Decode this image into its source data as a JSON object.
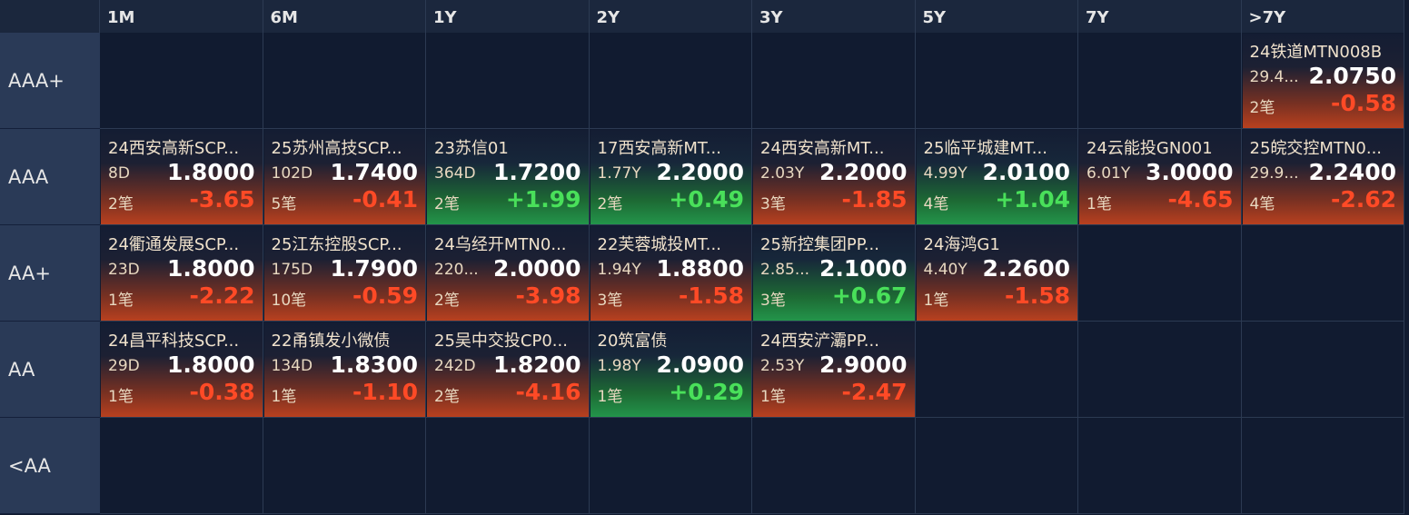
{
  "columns": [
    "1M",
    "6M",
    "1Y",
    "2Y",
    "3Y",
    "5Y",
    "7Y",
    ">7Y"
  ],
  "rows": [
    {
      "label": "AAA+",
      "cells": [
        null,
        null,
        null,
        null,
        null,
        null,
        null,
        {
          "name": "24铁道MTN008B",
          "term": "29.4...",
          "yield": "2.0750",
          "count": "2笔",
          "change": "-0.58"
        }
      ]
    },
    {
      "label": "AAA",
      "cells": [
        {
          "name": "24西安高新SCP...",
          "term": "8D",
          "yield": "1.8000",
          "count": "2笔",
          "change": "-3.65"
        },
        {
          "name": "25苏州高技SCP...",
          "term": "102D",
          "yield": "1.7400",
          "count": "5笔",
          "change": "-0.41"
        },
        {
          "name": "23苏信01",
          "term": "364D",
          "yield": "1.7200",
          "count": "2笔",
          "change": "+1.99"
        },
        {
          "name": "17西安高新MT...",
          "term": "1.77Y",
          "yield": "2.2000",
          "count": "2笔",
          "change": "+0.49"
        },
        {
          "name": "24西安高新MT...",
          "term": "2.03Y",
          "yield": "2.2000",
          "count": "3笔",
          "change": "-1.85"
        },
        {
          "name": "25临平城建MT...",
          "term": "4.99Y",
          "yield": "2.0100",
          "count": "4笔",
          "change": "+1.04"
        },
        {
          "name": "24云能投GN001",
          "term": "6.01Y",
          "yield": "3.0000",
          "count": "1笔",
          "change": "-4.65"
        },
        {
          "name": "25皖交控MTN0...",
          "term": "29.9...",
          "yield": "2.2400",
          "count": "4笔",
          "change": "-2.62"
        }
      ]
    },
    {
      "label": "AA+",
      "cells": [
        {
          "name": "24衢通发展SCP...",
          "term": "23D",
          "yield": "1.8000",
          "count": "1笔",
          "change": "-2.22"
        },
        {
          "name": "25江东控股SCP...",
          "term": "175D",
          "yield": "1.7900",
          "count": "10笔",
          "change": "-0.59"
        },
        {
          "name": "24乌经开MTN0...",
          "term": "220...",
          "yield": "2.0000",
          "count": "2笔",
          "change": "-3.98"
        },
        {
          "name": "22芙蓉城投MT...",
          "term": "1.94Y",
          "yield": "1.8800",
          "count": "3笔",
          "change": "-1.58"
        },
        {
          "name": "25新控集团PP...",
          "term": "2.85...",
          "yield": "2.1000",
          "count": "3笔",
          "change": "+0.67"
        },
        {
          "name": "24海鸿G1",
          "term": "4.40Y",
          "yield": "2.2600",
          "count": "1笔",
          "change": "-1.58"
        },
        null,
        null
      ]
    },
    {
      "label": "AA",
      "cells": [
        {
          "name": "24昌平科技SCP...",
          "term": "29D",
          "yield": "1.8000",
          "count": "1笔",
          "change": "-0.38"
        },
        {
          "name": "22甬镇发小微债",
          "term": "134D",
          "yield": "1.8300",
          "count": "1笔",
          "change": "-1.10"
        },
        {
          "name": "25吴中交投CP0...",
          "term": "242D",
          "yield": "1.8200",
          "count": "2笔",
          "change": "-4.16"
        },
        {
          "name": "20筑富债",
          "term": "1.98Y",
          "yield": "2.0900",
          "count": "1笔",
          "change": "+0.29"
        },
        {
          "name": "24西安浐灞PP...",
          "term": "2.53Y",
          "yield": "2.9000",
          "count": "1笔",
          "change": "-2.47"
        },
        null,
        null,
        null
      ]
    },
    {
      "label": "<AA",
      "cells": [
        null,
        null,
        null,
        null,
        null,
        null,
        null,
        null
      ]
    }
  ]
}
